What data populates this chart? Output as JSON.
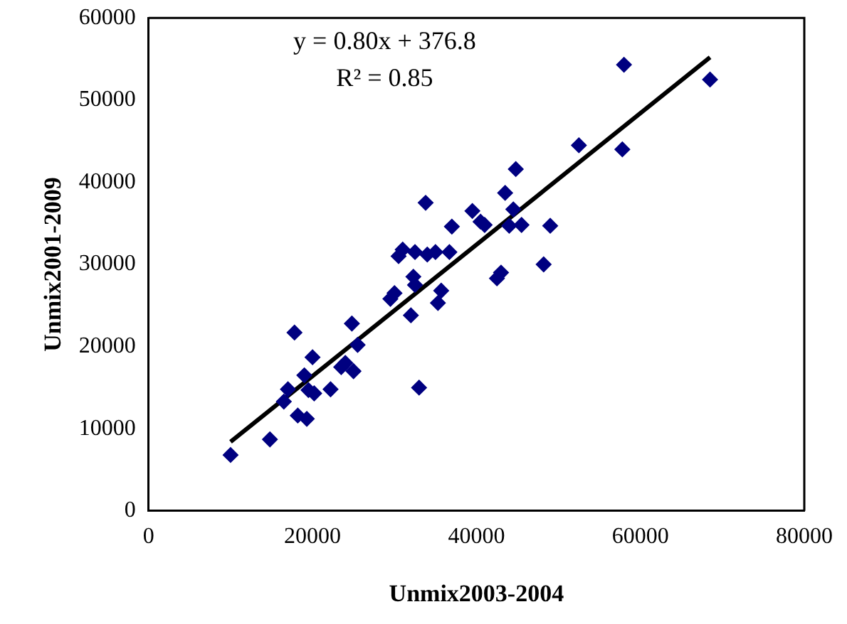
{
  "chart_data": {
    "type": "scatter",
    "xlabel": "Unmix2003-2004",
    "ylabel": "Unmix2001-2009",
    "annotations": [
      "y = 0.80x + 376.8",
      "R² = 0.85"
    ],
    "xlim": [
      0,
      80000
    ],
    "xticks": [
      0,
      20000,
      40000,
      60000,
      80000
    ],
    "ylim": [
      0,
      60000
    ],
    "yticks": [
      0,
      10000,
      20000,
      30000,
      40000,
      50000,
      60000
    ],
    "grid": false,
    "legend": false,
    "marker": "diamond",
    "series": [
      {
        "color": "#000080",
        "x": [
          10000,
          14800,
          16500,
          17000,
          17800,
          18200,
          19000,
          19300,
          19500,
          20000,
          20200,
          22200,
          23500,
          24000,
          24800,
          25000,
          25500,
          29500,
          30000,
          30500,
          31000,
          32000,
          32300,
          32500,
          32500,
          33000,
          33800,
          34000,
          35000,
          35300,
          35700,
          36700,
          37000,
          39500,
          40500,
          41000,
          42500,
          43000,
          43500,
          44000,
          44500,
          44800,
          45500,
          48200,
          49000,
          52500,
          57800,
          58000,
          68500
        ],
        "values": [
          6800,
          8700,
          13300,
          14800,
          21700,
          11600,
          16500,
          11200,
          14700,
          18700,
          14300,
          14800,
          17500,
          18000,
          22800,
          17000,
          20200,
          25800,
          26500,
          31000,
          31800,
          23800,
          28500,
          27500,
          31500,
          15000,
          37500,
          31200,
          31500,
          25300,
          26800,
          31500,
          34600,
          36500,
          35200,
          34800,
          28300,
          29000,
          38700,
          34700,
          36700,
          41600,
          34800,
          30000,
          34700,
          44500,
          44000,
          54300,
          52500
        ]
      },
      {
        "type": "line",
        "color": "#000000",
        "line_style": "solid",
        "marker": "none",
        "x": [
          10000,
          68500
        ],
        "values": [
          8400,
          55200
        ]
      }
    ]
  }
}
